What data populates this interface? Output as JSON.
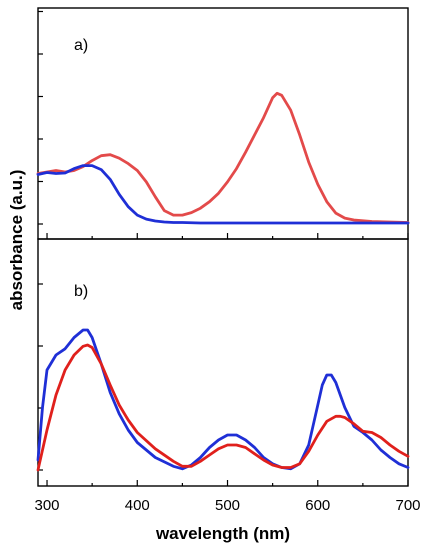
{
  "chart_data": [
    {
      "panel_label": "a)",
      "type": "line",
      "xlim": [
        290,
        700
      ],
      "y_tick_count": 6,
      "y_tick_labels": false,
      "series": [
        {
          "color": "#e34a4a",
          "x": [
            290,
            300,
            310,
            320,
            330,
            340,
            350,
            360,
            370,
            380,
            390,
            400,
            410,
            420,
            430,
            440,
            450,
            460,
            470,
            480,
            490,
            500,
            510,
            520,
            530,
            540,
            550,
            555,
            560,
            570,
            580,
            590,
            600,
            610,
            620,
            630,
            640,
            660,
            680,
            700
          ],
          "y": [
            1.02,
            1.05,
            1.08,
            1.05,
            1.08,
            1.16,
            1.28,
            1.38,
            1.4,
            1.33,
            1.22,
            1.08,
            0.85,
            0.55,
            0.27,
            0.18,
            0.18,
            0.23,
            0.32,
            0.45,
            0.62,
            0.85,
            1.12,
            1.45,
            1.8,
            2.15,
            2.55,
            2.64,
            2.6,
            2.3,
            1.8,
            1.25,
            0.8,
            0.45,
            0.22,
            0.12,
            0.08,
            0.05,
            0.04,
            0.03
          ]
        },
        {
          "color": "#1f2fd6",
          "x": [
            290,
            300,
            310,
            320,
            330,
            340,
            350,
            360,
            370,
            380,
            390,
            400,
            410,
            420,
            430,
            440,
            450,
            470,
            500,
            550,
            600,
            650,
            700
          ],
          "y": [
            1.0,
            1.04,
            1.02,
            1.03,
            1.12,
            1.18,
            1.18,
            1.1,
            0.9,
            0.6,
            0.35,
            0.18,
            0.1,
            0.06,
            0.04,
            0.03,
            0.03,
            0.02,
            0.02,
            0.02,
            0.02,
            0.02,
            0.02
          ]
        }
      ]
    },
    {
      "panel_label": "b)",
      "type": "line",
      "xlim": [
        290,
        700
      ],
      "ylim": [
        0,
        1.3
      ],
      "xlabel": "wavelength (nm)",
      "x_ticks": [
        300,
        400,
        500,
        600,
        700
      ],
      "y_tick_count": 4,
      "y_tick_labels": false,
      "series": [
        {
          "color": "#1f2fd6",
          "x": [
            290,
            295,
            300,
            310,
            320,
            330,
            340,
            345,
            350,
            360,
            370,
            380,
            390,
            400,
            420,
            440,
            450,
            460,
            470,
            480,
            490,
            500,
            510,
            520,
            530,
            540,
            550,
            560,
            570,
            580,
            590,
            600,
            605,
            610,
            615,
            620,
            630,
            640,
            650,
            660,
            670,
            680,
            690,
            700
          ],
          "y": [
            0.08,
            0.5,
            0.8,
            0.92,
            0.97,
            1.06,
            1.12,
            1.12,
            1.06,
            0.85,
            0.62,
            0.45,
            0.32,
            0.22,
            0.1,
            0.03,
            0.01,
            0.04,
            0.1,
            0.18,
            0.24,
            0.28,
            0.28,
            0.24,
            0.18,
            0.1,
            0.05,
            0.02,
            0.01,
            0.05,
            0.2,
            0.52,
            0.68,
            0.76,
            0.76,
            0.7,
            0.5,
            0.35,
            0.3,
            0.24,
            0.16,
            0.1,
            0.05,
            0.02
          ]
        },
        {
          "color": "#e0201c",
          "x": [
            290,
            300,
            310,
            320,
            330,
            340,
            345,
            350,
            360,
            370,
            380,
            390,
            400,
            420,
            440,
            450,
            460,
            470,
            480,
            490,
            500,
            510,
            520,
            530,
            540,
            550,
            560,
            570,
            580,
            590,
            600,
            610,
            620,
            625,
            630,
            640,
            650,
            660,
            670,
            680,
            690,
            700
          ],
          "y": [
            0.0,
            0.32,
            0.6,
            0.8,
            0.92,
            0.99,
            1.0,
            0.98,
            0.85,
            0.68,
            0.52,
            0.4,
            0.3,
            0.17,
            0.07,
            0.03,
            0.03,
            0.07,
            0.12,
            0.17,
            0.2,
            0.2,
            0.18,
            0.13,
            0.08,
            0.04,
            0.02,
            0.02,
            0.05,
            0.15,
            0.28,
            0.39,
            0.43,
            0.43,
            0.42,
            0.37,
            0.31,
            0.3,
            0.26,
            0.2,
            0.15,
            0.11
          ]
        }
      ]
    }
  ],
  "ylabel": "absorbance (a.u.)"
}
